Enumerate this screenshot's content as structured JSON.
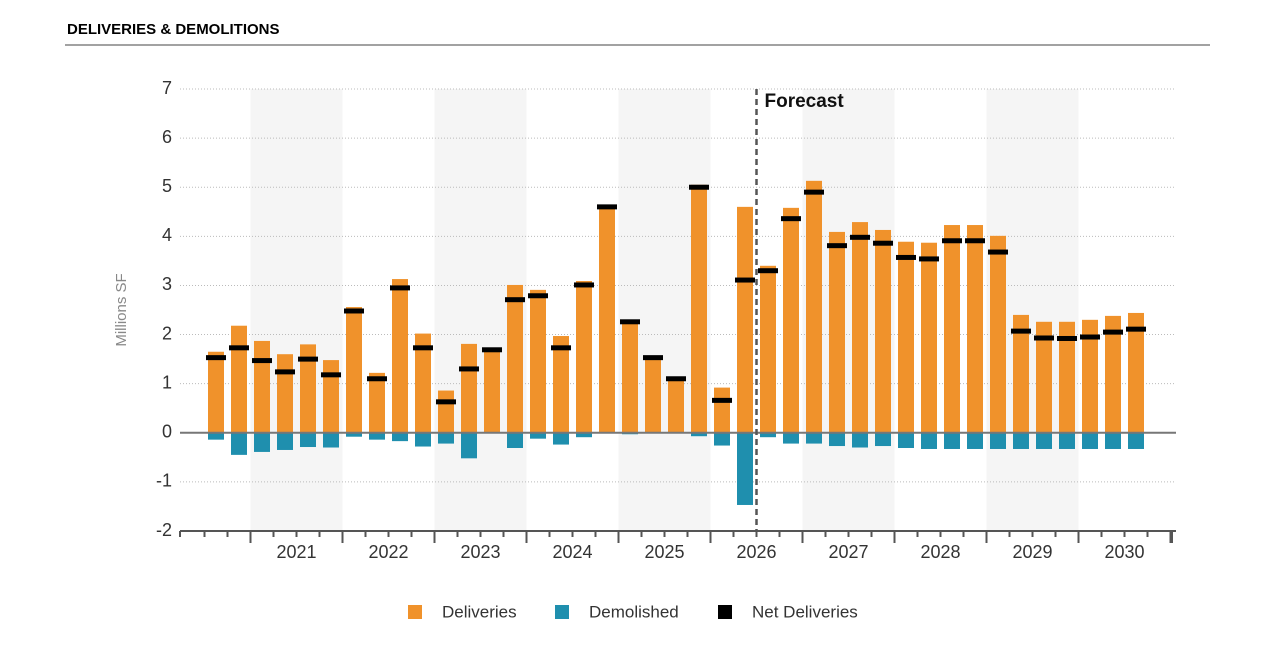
{
  "chart_data": {
    "type": "bar",
    "title": "DELIVERIES & DEMOLITIONS",
    "y_label": "Millions SF",
    "annotation": "Forecast",
    "forecast_start_index": 24,
    "categories": [
      null,
      null,
      null,
      null,
      null,
      null,
      null,
      null,
      null,
      null,
      null,
      null,
      null,
      null,
      null,
      null,
      null,
      null,
      null,
      null,
      null,
      null,
      null,
      null,
      null,
      null,
      null,
      null,
      null,
      null,
      null,
      null,
      null,
      null,
      null,
      null,
      null,
      null,
      null,
      null,
      null
    ],
    "year_labels": [
      "2021",
      "2022",
      "2023",
      "2024",
      "2025",
      "2026",
      "2027",
      "2028",
      "2029",
      "2030"
    ],
    "series": [
      {
        "name": "Deliveries",
        "color": "#f0922b",
        "style": "bar",
        "values": [
          1.65,
          2.18,
          1.87,
          1.6,
          1.8,
          1.48,
          2.56,
          1.22,
          3.13,
          2.02,
          0.86,
          1.81,
          1.69,
          3.01,
          2.91,
          1.97,
          3.09,
          4.6,
          2.28,
          1.53,
          1.1,
          5.05,
          0.92,
          4.6,
          3.4,
          4.58,
          5.13,
          4.09,
          4.29,
          4.13,
          3.89,
          3.87,
          4.23,
          4.23,
          4.01,
          2.4,
          2.26,
          2.26,
          2.3,
          2.38,
          2.44
        ]
      },
      {
        "name": "Demolished",
        "color": "#1f8fae",
        "style": "bar",
        "values": [
          -0.14,
          -0.45,
          -0.39,
          -0.35,
          -0.29,
          -0.3,
          -0.08,
          -0.14,
          -0.17,
          -0.28,
          -0.22,
          -0.52,
          0,
          -0.31,
          -0.12,
          -0.24,
          -0.09,
          0,
          -0.03,
          0,
          0,
          -0.07,
          -0.26,
          -1.47,
          -0.09,
          -0.22,
          -0.22,
          -0.27,
          -0.3,
          -0.27,
          -0.31,
          -0.33,
          -0.33,
          -0.33,
          -0.33,
          -0.33,
          -0.33,
          -0.33,
          -0.33,
          -0.33,
          -0.33
        ]
      },
      {
        "name": "Net Deliveries",
        "color": "#000000",
        "style": "marker",
        "values": [
          1.53,
          1.73,
          1.47,
          1.24,
          1.5,
          1.18,
          2.48,
          1.1,
          2.95,
          1.73,
          0.63,
          1.3,
          1.69,
          2.71,
          2.79,
          1.73,
          3.01,
          4.6,
          2.26,
          1.53,
          1.1,
          5.0,
          0.66,
          3.11,
          3.3,
          4.36,
          4.9,
          3.81,
          3.98,
          3.86,
          3.57,
          3.54,
          3.91,
          3.91,
          3.68,
          2.07,
          1.93,
          1.92,
          1.95,
          2.05,
          2.11
        ]
      }
    ],
    "ylim": [
      -2,
      7
    ],
    "yticks": [
      -2,
      -1,
      0,
      1,
      2,
      3,
      4,
      5,
      6,
      7
    ],
    "grid": true
  }
}
